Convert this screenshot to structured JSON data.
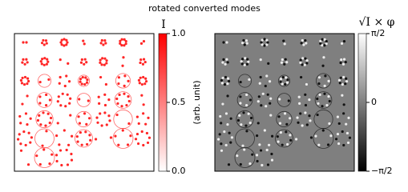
{
  "title": "rotated converted modes",
  "chart_data": [
    {
      "type": "image",
      "colorbar": {
        "label": "I",
        "axis_label": "(arb. unit)",
        "ylim": [
          0,
          1
        ],
        "yticks": [
          {
            "value": 0,
            "label": "0.0"
          },
          {
            "value": 0.5,
            "label": "0.5"
          },
          {
            "value": 1,
            "label": "1.0"
          }
        ],
        "colors": [
          "#ffffff",
          "#ff0000"
        ]
      }
    },
    {
      "type": "image",
      "colorbar": {
        "label": "√I × φ",
        "ylim": [
          -1.5708,
          1.5708
        ],
        "yticks": [
          {
            "value": -1.5708,
            "label": "−π/2"
          },
          {
            "value": 0,
            "label": "0"
          },
          {
            "value": 1.5708,
            "label": "π/2"
          }
        ],
        "colors": [
          "#000000",
          "#ffffff"
        ]
      }
    }
  ]
}
